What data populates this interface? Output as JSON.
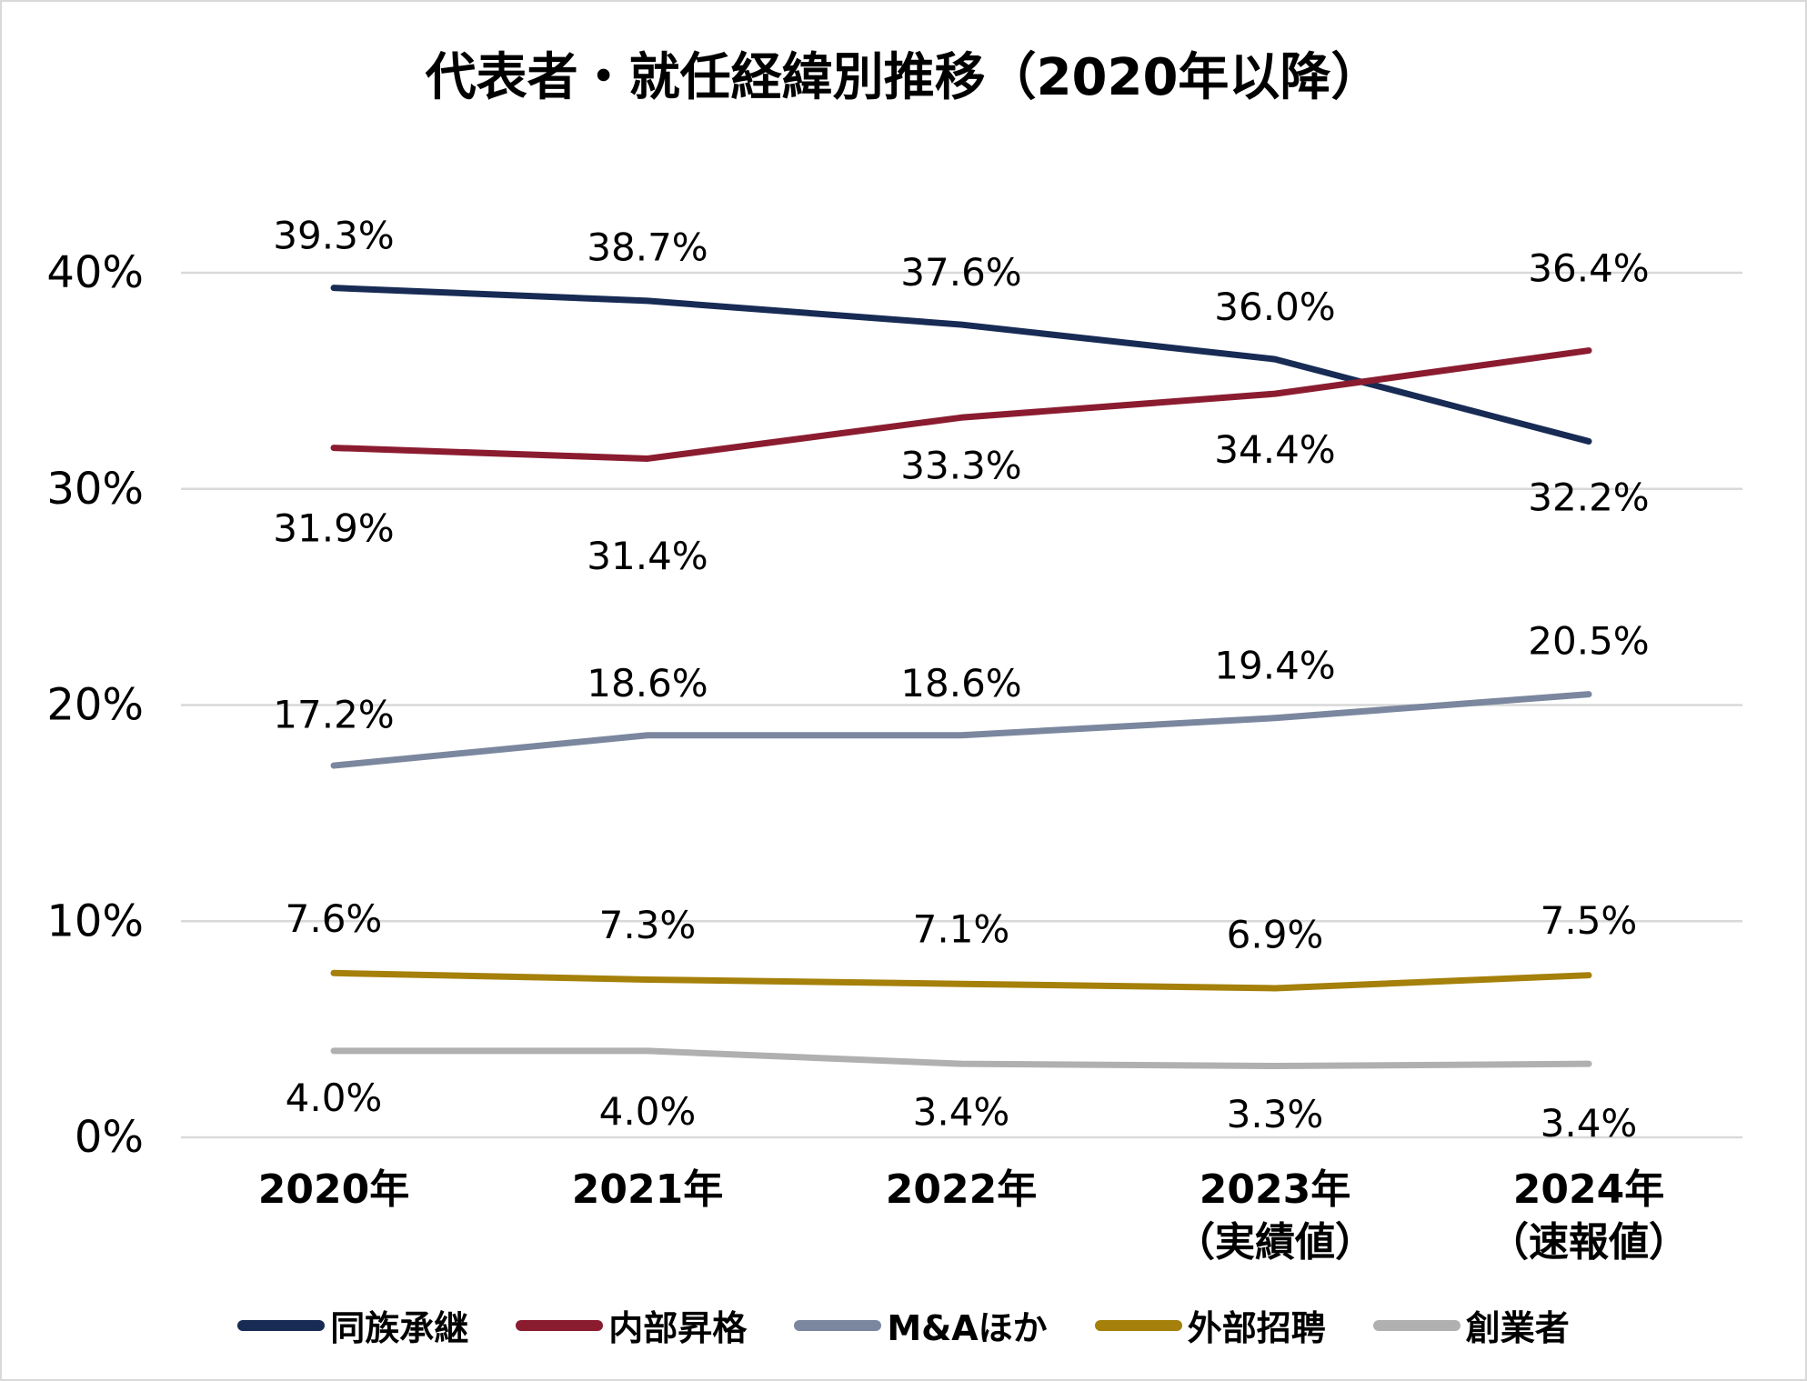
{
  "chart_data": {
    "type": "line",
    "title": "代表者・就任経緯別推移（2020年以降）",
    "categories": [
      "2020年",
      "2021年",
      "2022年",
      "2023年\n（実績値）",
      "2024年\n（速報値）"
    ],
    "ylim": [
      0,
      40
    ],
    "yticks": [
      "0%",
      "10%",
      "20%",
      "30%",
      "40%"
    ],
    "ytick_values": [
      0,
      10,
      20,
      30,
      40
    ],
    "grid": true,
    "legend": "bottom",
    "series": [
      {
        "name": "同族承継",
        "color": "#172b54",
        "values": [
          39.3,
          38.7,
          37.6,
          36.0,
          32.2
        ],
        "labels": [
          "39.3%",
          "38.7%",
          "37.6%",
          "36.0%",
          "32.2%"
        ]
      },
      {
        "name": "内部昇格",
        "color": "#8b1c30",
        "values": [
          31.9,
          31.4,
          33.3,
          34.4,
          36.4
        ],
        "labels": [
          "31.9%",
          "31.4%",
          "33.3%",
          "34.4%",
          "36.4%"
        ]
      },
      {
        "name": "M&Aほか",
        "color": "#7b879e",
        "values": [
          17.2,
          18.6,
          18.6,
          19.4,
          20.5
        ],
        "labels": [
          "17.2%",
          "18.6%",
          "18.6%",
          "19.4%",
          "20.5%"
        ]
      },
      {
        "name": "外部招聘",
        "color": "#a5800a",
        "values": [
          7.6,
          7.3,
          7.1,
          6.9,
          7.5
        ],
        "labels": [
          "7.6%",
          "7.3%",
          "7.1%",
          "6.9%",
          "7.5%"
        ]
      },
      {
        "name": "創業者",
        "color": "#b0b0b0",
        "values": [
          4.0,
          4.0,
          3.4,
          3.3,
          3.4
        ],
        "labels": [
          "4.0%",
          "4.0%",
          "3.4%",
          "3.3%",
          "3.4%"
        ]
      }
    ]
  }
}
